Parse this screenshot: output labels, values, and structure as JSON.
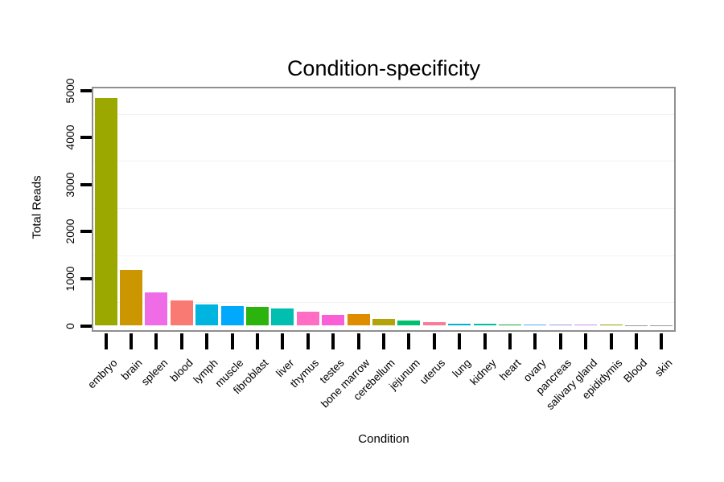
{
  "chart_data": {
    "type": "bar",
    "title": "Condition-specificity",
    "xlabel": "Condition",
    "ylabel": "Total Reads",
    "ylim": [
      0,
      5000
    ],
    "yticks": [
      0,
      1000,
      2000,
      3000,
      4000,
      5000
    ],
    "minor_gridlines": [
      500,
      1500,
      2500,
      3500,
      4500
    ],
    "grid": "faint horizontal minor gridlines only",
    "legend": "none",
    "background_color": "#FFFFFF",
    "panel_border_color": "#8F8F8F",
    "gridline_color": "#F2F2F2",
    "tick_color": "#000000",
    "categories": [
      "embryo",
      "brain",
      "spleen",
      "blood",
      "lymph",
      "muscle",
      "fibroblast",
      "liver",
      "thymus",
      "testes",
      "bone marrow",
      "cerebellum",
      "jejunum",
      "uterus",
      "lung",
      "kidney",
      "heart",
      "ovary",
      "pancreas",
      "salivary gland",
      "epididymis",
      "Blood",
      "skin"
    ],
    "values": [
      4830,
      1185,
      700,
      540,
      455,
      420,
      395,
      375,
      300,
      230,
      245,
      150,
      115,
      80,
      38,
      36,
      34,
      30,
      26,
      26,
      30,
      8,
      4
    ],
    "bar_colors": [
      "#9AA800",
      "#CC9600",
      "#F06CE6",
      "#F87A72",
      "#00B4E0",
      "#00A9FB",
      "#2DB30D",
      "#00BFB0",
      "#FF6EC4",
      "#FA5FD8",
      "#DF8D00",
      "#B3A309",
      "#00BF6E",
      "#F97B97",
      "#00B0D6",
      "#00BDA4",
      "#1FA62E",
      "#52A9F1",
      "#9C99EC",
      "#CB8DF1",
      "#8FA400",
      "#999999",
      "#999999"
    ]
  }
}
